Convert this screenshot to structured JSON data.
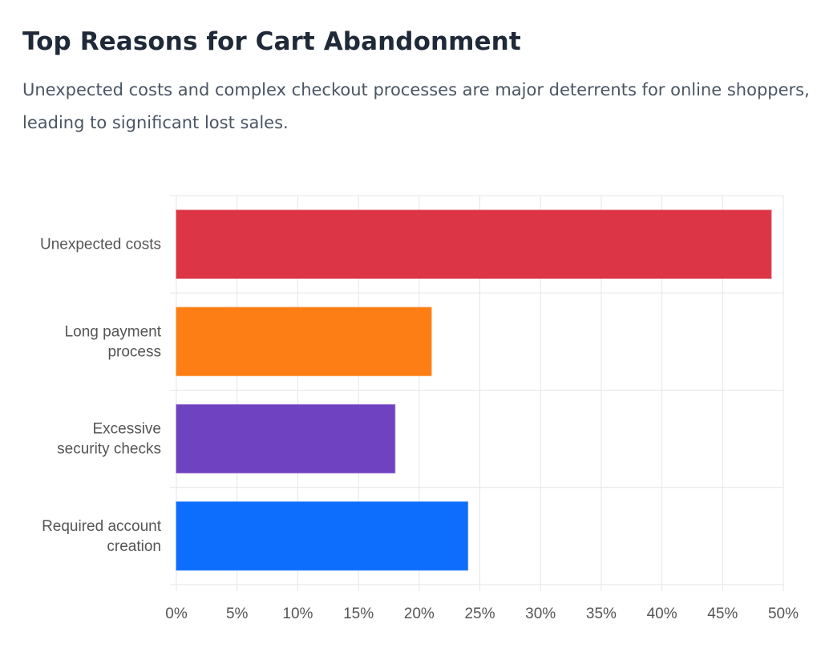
{
  "header": {
    "title": "Top Reasons for Cart Abandonment",
    "subtitle": "Unexpected costs and complex checkout processes are major deterrents for online shoppers, leading to significant lost sales."
  },
  "chart_data": {
    "type": "bar",
    "orientation": "horizontal",
    "categories": [
      [
        "Unexpected costs"
      ],
      [
        "Long payment",
        "process"
      ],
      [
        "Excessive",
        "security checks"
      ],
      [
        "Required account",
        "creation"
      ]
    ],
    "values": [
      49,
      21,
      18,
      24
    ],
    "colors": [
      "#dc3545",
      "#fd7e14",
      "#6f42c1",
      "#0d6efd"
    ],
    "xlim": [
      0,
      50
    ],
    "x_ticks": [
      0,
      5,
      10,
      15,
      20,
      25,
      30,
      35,
      40,
      45,
      50
    ],
    "tick_suffix": "%",
    "grid": true,
    "legend": "none"
  }
}
